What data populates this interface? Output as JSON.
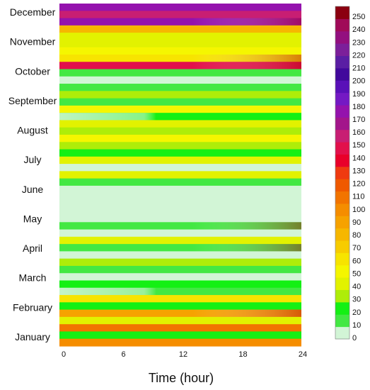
{
  "chart_data": {
    "type": "heatmap",
    "title": "",
    "xlabel": "Time (hour)",
    "ylabel": "",
    "x_ticks": [
      0,
      6,
      12,
      18,
      24
    ],
    "xlim": [
      0,
      24
    ],
    "y_categories": [
      "January",
      "February",
      "March",
      "April",
      "May",
      "June",
      "July",
      "August",
      "September",
      "October",
      "November",
      "December"
    ],
    "colorbar": {
      "ticks": [
        0,
        10,
        20,
        30,
        40,
        50,
        60,
        70,
        80,
        90,
        100,
        110,
        120,
        130,
        140,
        150,
        160,
        170,
        180,
        190,
        200,
        210,
        220,
        230,
        240,
        250
      ],
      "range": [
        0,
        255
      ],
      "colors": [
        "#d2f5d6",
        "#43e843",
        "#14f014",
        "#aeed09",
        "#e2f200",
        "#f5f600",
        "#f7e400",
        "#f7cc00",
        "#f6b700",
        "#f6a200",
        "#f58d00",
        "#f27400",
        "#ef5900",
        "#ef3a10",
        "#e9002a",
        "#e2104b",
        "#c81e73",
        "#a3168b",
        "#9412ad",
        "#7419c4",
        "#5910b8",
        "#41089c",
        "#5a1ea4",
        "#7c1f9a",
        "#930f7f",
        "#a00a58",
        "#8b0010"
      ]
    },
    "rows": [
      {
        "value": 180,
        "profile": "even"
      },
      {
        "value": 160,
        "profile": "even"
      },
      {
        "value": 180,
        "profile": "late"
      },
      {
        "value": 80,
        "profile": "even"
      },
      {
        "value": 40,
        "profile": "even"
      },
      {
        "value": 35,
        "profile": "even"
      },
      {
        "value": 45,
        "profile": "even"
      },
      {
        "value": 60,
        "profile": "late"
      },
      {
        "value": 150,
        "profile": "late"
      },
      {
        "value": 10,
        "profile": "even"
      },
      {
        "value": 0,
        "profile": "even"
      },
      {
        "value": 10,
        "profile": "even"
      },
      {
        "value": 30,
        "profile": "even"
      },
      {
        "value": 10,
        "profile": "even"
      },
      {
        "value": 45,
        "profile": "even"
      },
      {
        "value": 20,
        "profile": "early"
      },
      {
        "value": 40,
        "profile": "even"
      },
      {
        "value": 25,
        "profile": "even"
      },
      {
        "value": 45,
        "profile": "even"
      },
      {
        "value": 30,
        "profile": "even"
      },
      {
        "value": 15,
        "profile": "even"
      },
      {
        "value": 40,
        "profile": "even"
      },
      {
        "value": 0,
        "profile": "even"
      },
      {
        "value": 40,
        "profile": "even"
      },
      {
        "value": 10,
        "profile": "even"
      },
      {
        "value": 0,
        "profile": "even"
      },
      {
        "value": 0,
        "profile": "even"
      },
      {
        "value": 0,
        "profile": "even"
      },
      {
        "value": 0,
        "profile": "even"
      },
      {
        "value": 0,
        "profile": "even"
      },
      {
        "value": 10,
        "profile": "late"
      },
      {
        "value": 0,
        "profile": "even"
      },
      {
        "value": 40,
        "profile": "even"
      },
      {
        "value": 10,
        "profile": "late"
      },
      {
        "value": 0,
        "profile": "even"
      },
      {
        "value": 30,
        "profile": "even"
      },
      {
        "value": 10,
        "profile": "even"
      },
      {
        "value": 0,
        "profile": "even"
      },
      {
        "value": 15,
        "profile": "even"
      },
      {
        "value": 10,
        "profile": "early"
      },
      {
        "value": 60,
        "profile": "even"
      },
      {
        "value": 15,
        "profile": "even"
      },
      {
        "value": 90,
        "profile": "late"
      },
      {
        "value": 40,
        "profile": "even"
      },
      {
        "value": 110,
        "profile": "even"
      },
      {
        "value": 15,
        "profile": "even"
      },
      {
        "value": 95,
        "profile": "even"
      }
    ]
  }
}
